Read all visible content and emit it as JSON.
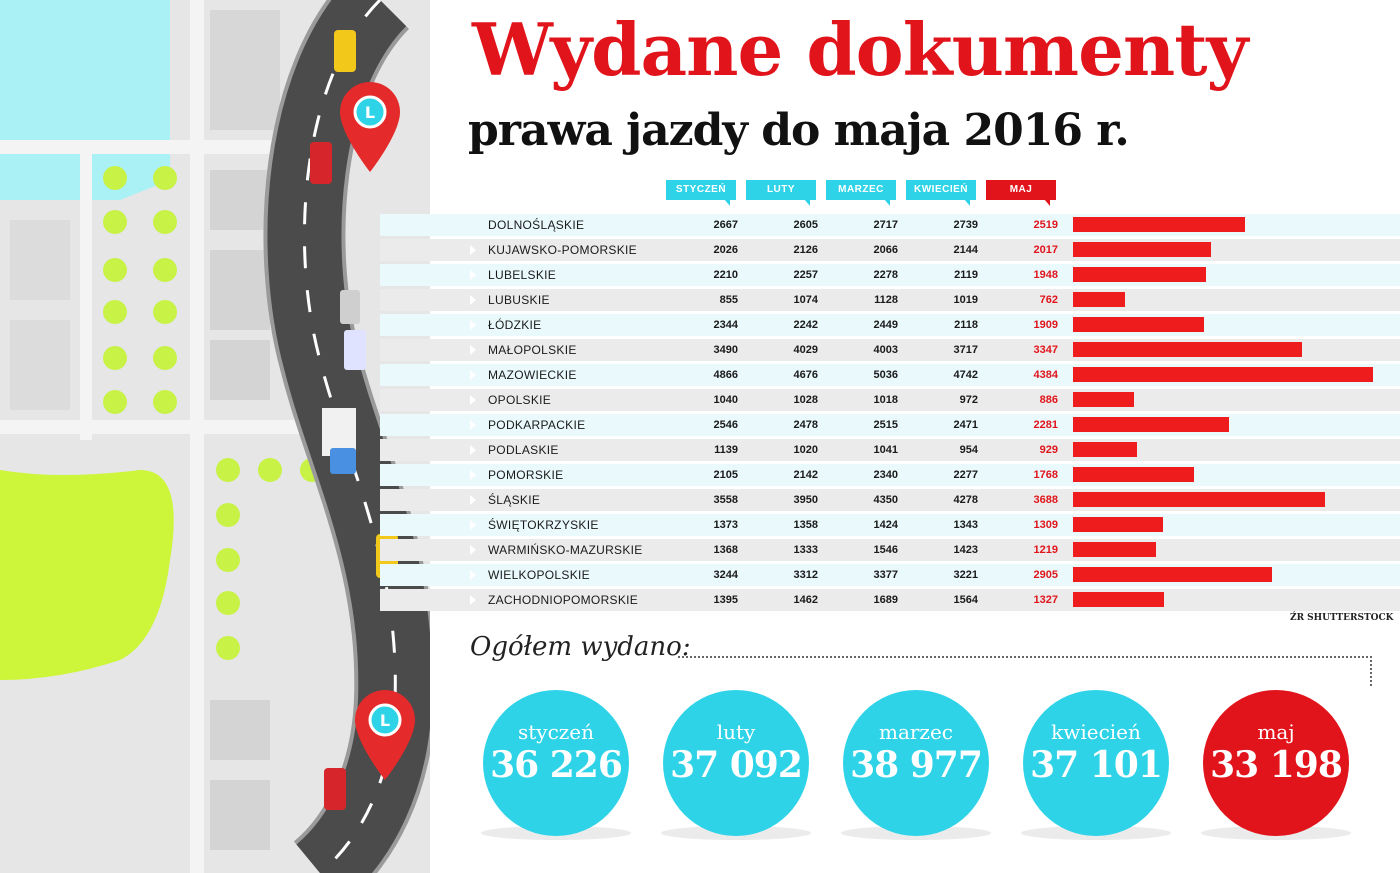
{
  "title": "Wydane dokumenty",
  "subtitle": "prawa jazdy do maja 2016 r.",
  "headers": [
    "STYCZEŃ",
    "LUTY",
    "MARZEC",
    "KWIECIEŃ",
    "MAJ"
  ],
  "source": "ŹR SHUTTERSTOCK",
  "total_label": "Ogółem wydano:",
  "totals": [
    {
      "month": "styczeń",
      "value": "36 226"
    },
    {
      "month": "luty",
      "value": "37 092"
    },
    {
      "month": "marzec",
      "value": "38 977"
    },
    {
      "month": "kwiecień",
      "value": "37 101"
    },
    {
      "month": "maj",
      "value": "33 198"
    }
  ],
  "colors": {
    "accent_red": "#e1141b",
    "accent_cyan": "#2fd3e8",
    "bar_red": "#ee1c1c"
  },
  "chart_data": {
    "type": "table",
    "columns": [
      "STYCZEŃ",
      "LUTY",
      "MARZEC",
      "KWIECIEŃ",
      "MAJ"
    ],
    "rows": [
      {
        "name": "DOLNOŚLĄSKIE",
        "values": [
          2667,
          2605,
          2717,
          2739,
          2519
        ]
      },
      {
        "name": "KUJAWSKO-POMORSKIE",
        "values": [
          2026,
          2126,
          2066,
          2144,
          2017
        ]
      },
      {
        "name": "LUBELSKIE",
        "values": [
          2210,
          2257,
          2278,
          2119,
          1948
        ]
      },
      {
        "name": "LUBUSKIE",
        "values": [
          855,
          1074,
          1128,
          1019,
          762
        ]
      },
      {
        "name": "ŁÓDZKIE",
        "values": [
          2344,
          2242,
          2449,
          2118,
          1909
        ]
      },
      {
        "name": "MAŁOPOLSKIE",
        "values": [
          3490,
          4029,
          4003,
          3717,
          3347
        ]
      },
      {
        "name": "MAZOWIECKIE",
        "values": [
          4866,
          4676,
          5036,
          4742,
          4384
        ]
      },
      {
        "name": "OPOLSKIE",
        "values": [
          1040,
          1028,
          1018,
          972,
          886
        ]
      },
      {
        "name": "PODKARPACKIE",
        "values": [
          2546,
          2478,
          2515,
          2471,
          2281
        ]
      },
      {
        "name": "PODLASKIE",
        "values": [
          1139,
          1020,
          1041,
          954,
          929
        ]
      },
      {
        "name": "POMORSKIE",
        "values": [
          2105,
          2142,
          2340,
          2277,
          1768
        ]
      },
      {
        "name": "ŚLĄSKIE",
        "values": [
          3558,
          3950,
          4350,
          4278,
          3688
        ]
      },
      {
        "name": "ŚWIĘTOKRZYSKIE",
        "values": [
          1373,
          1358,
          1424,
          1343,
          1309
        ]
      },
      {
        "name": "WARMIŃSKO-MAZURSKIE",
        "values": [
          1368,
          1333,
          1546,
          1423,
          1219
        ]
      },
      {
        "name": "WIELKOPOLSKIE",
        "values": [
          3244,
          3312,
          3377,
          3221,
          2905
        ]
      },
      {
        "name": "ZACHODNIOPOMORSKIE",
        "values": [
          1395,
          1462,
          1689,
          1564,
          1327
        ]
      }
    ],
    "bar_series": "MAJ"
  }
}
